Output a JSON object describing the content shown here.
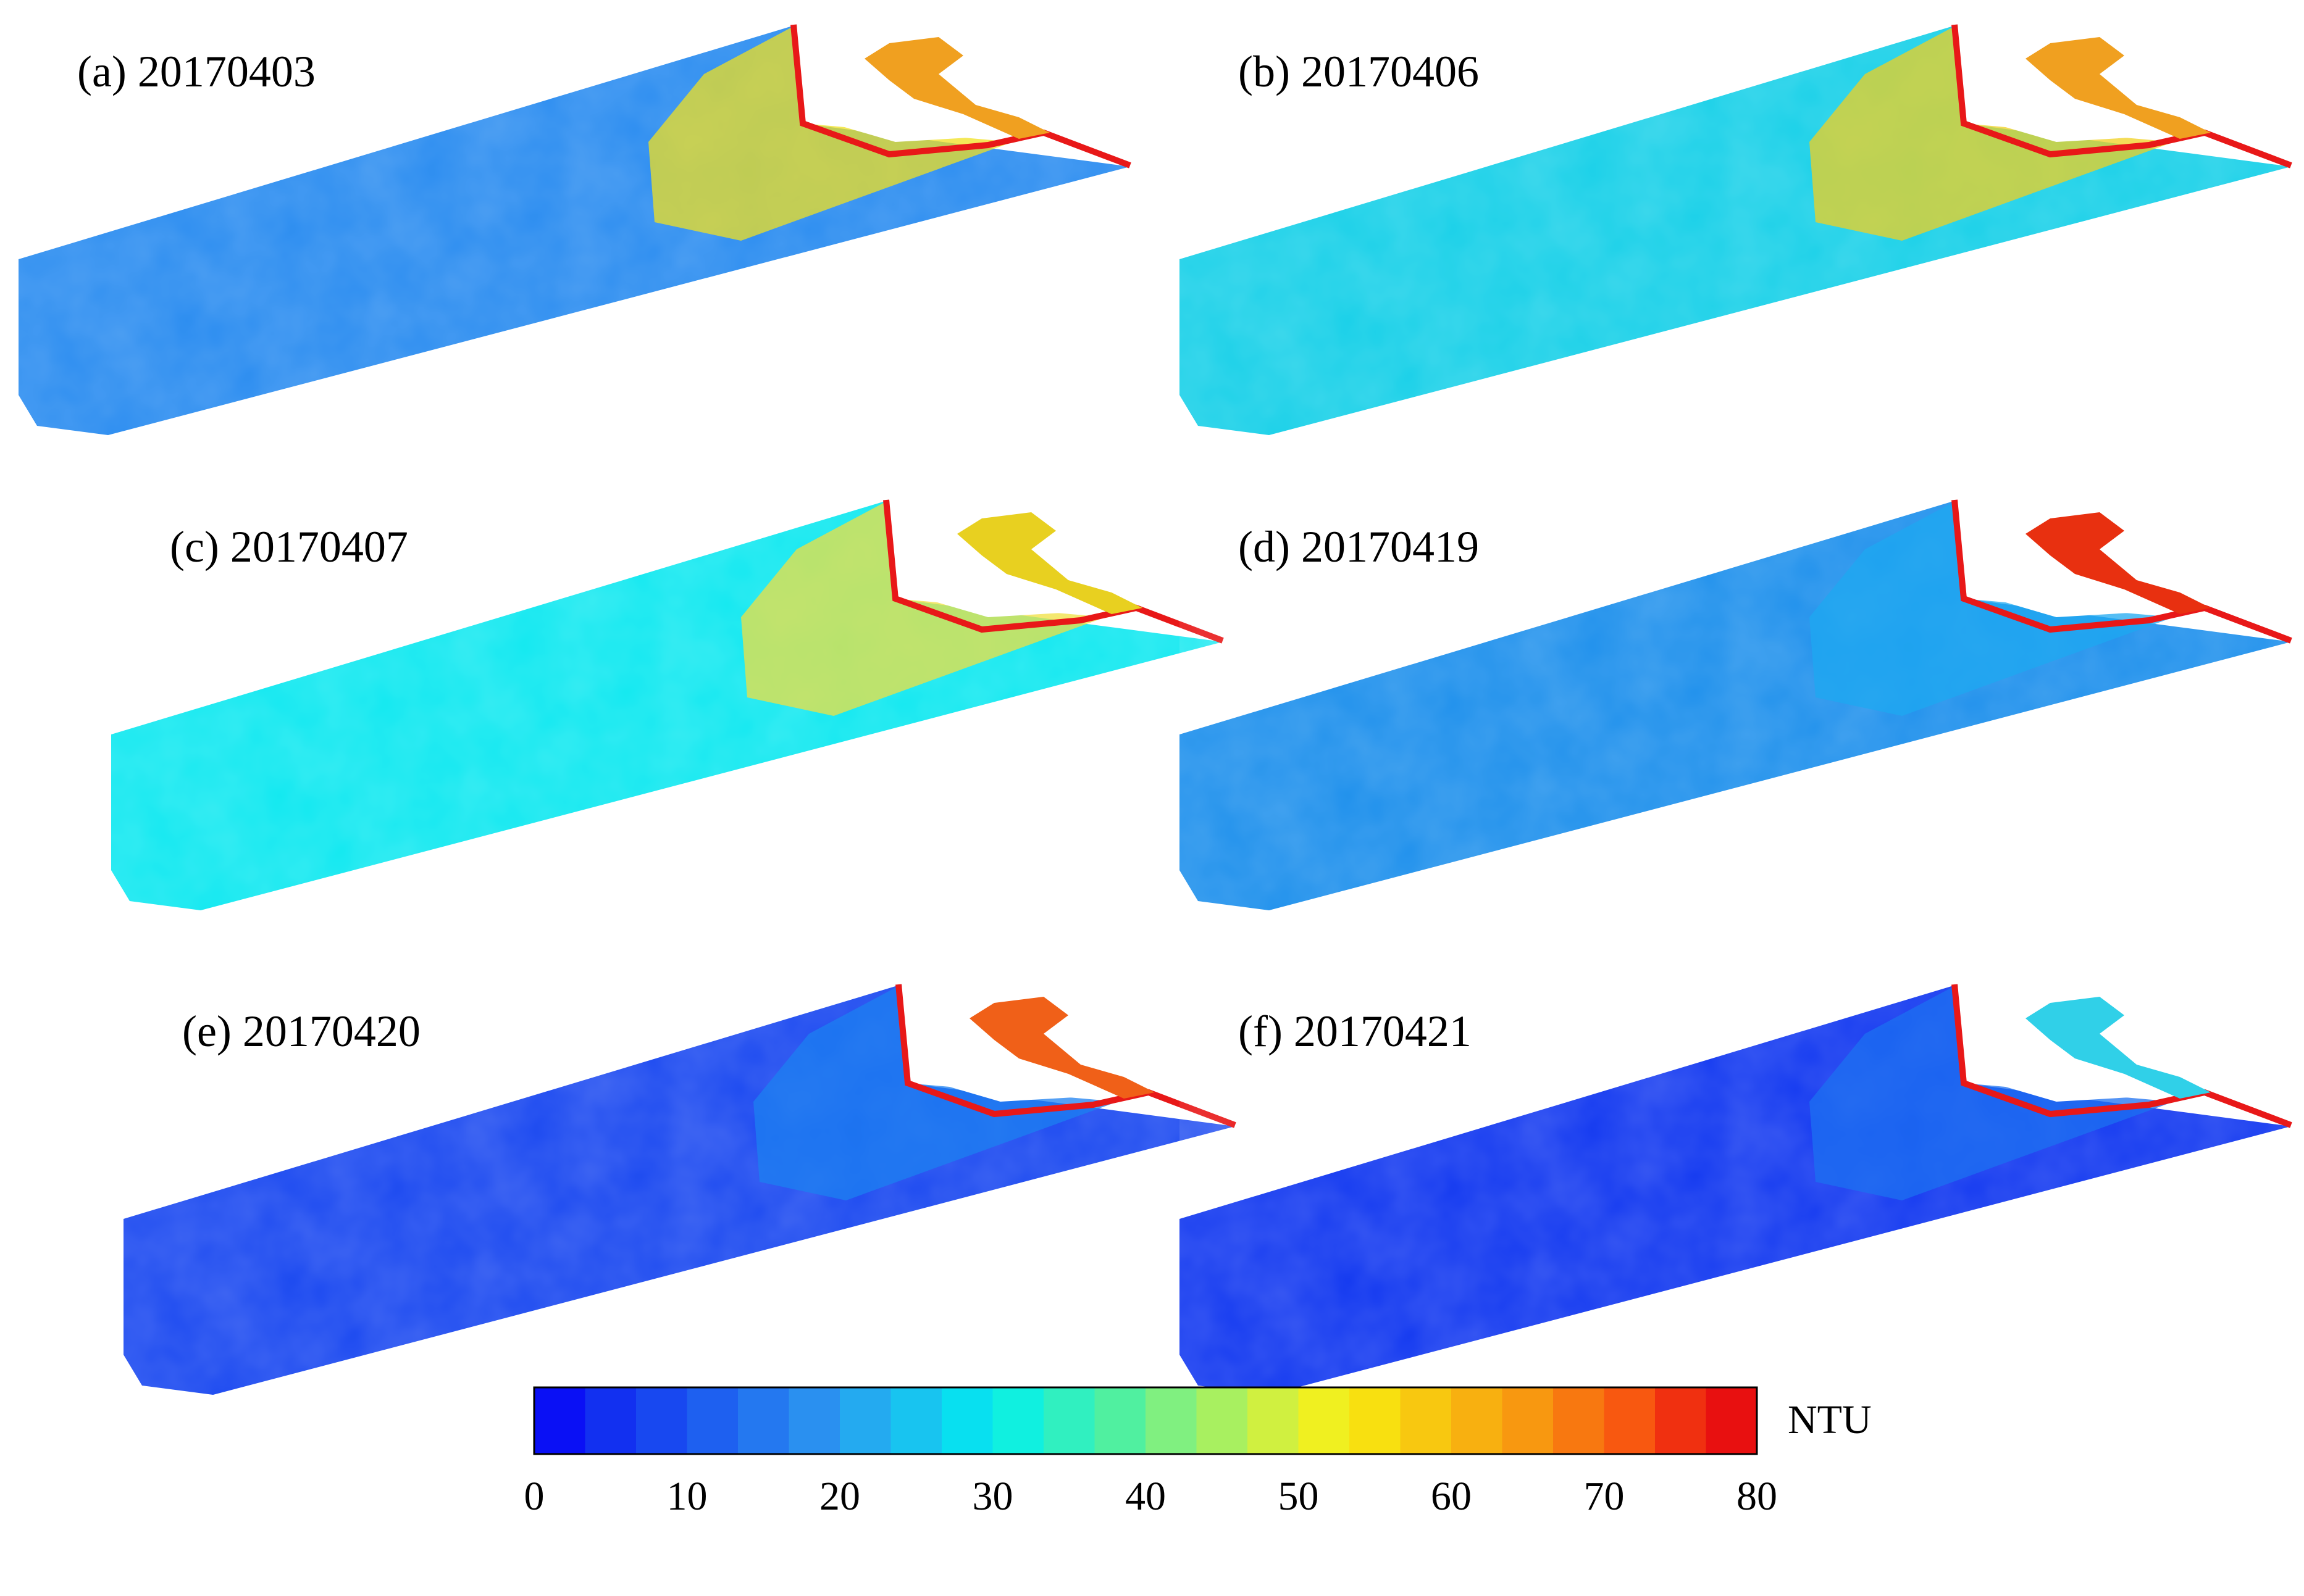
{
  "panels": [
    {
      "label": "(a) 20170403",
      "base_color": "#2a8cf0",
      "plume_color": "#f0e020",
      "edge_color": "#e81818",
      "lagoon_color": "#f0a020"
    },
    {
      "label": "(b) 20170406",
      "base_color": "#18d0e8",
      "plume_color": "#f0d020",
      "edge_color": "#e81818",
      "lagoon_color": "#f0a020"
    },
    {
      "label": "(c) 20170407",
      "base_color": "#10e8f0",
      "plume_color": "#f0e040",
      "edge_color": "#e81818",
      "lagoon_color": "#e8d020"
    },
    {
      "label": "(d) 20170419",
      "base_color": "#1e90ec",
      "plume_color": "#1ea8f0",
      "edge_color": "#e81818",
      "lagoon_color": "#e83010"
    },
    {
      "label": "(e) 20170420",
      "base_color": "#1a48f0",
      "plume_color": "#1c80f0",
      "edge_color": "#e81818",
      "lagoon_color": "#f06018"
    },
    {
      "label": "(f) 20170421",
      "base_color": "#1238f0",
      "plume_color": "#1c70f0",
      "edge_color": "#e81818",
      "lagoon_color": "#30d0e8"
    }
  ],
  "colorbar": {
    "unit": "NTU",
    "min": 0,
    "max": 80,
    "ticks": [
      "0",
      "10",
      "20",
      "30",
      "40",
      "50",
      "60",
      "70",
      "80"
    ],
    "colors": [
      "#0a10f5",
      "#1230f0",
      "#1848f0",
      "#1e60f0",
      "#2478f0",
      "#2a90f0",
      "#24aaf0",
      "#18c4f0",
      "#08e0f0",
      "#10f0e0",
      "#30f0c0",
      "#50f0a0",
      "#80f080",
      "#a8f060",
      "#d0f040",
      "#f0f020",
      "#f8e010",
      "#f8c810",
      "#f8b010",
      "#f89810",
      "#f87810",
      "#f85810",
      "#f03010",
      "#e81010"
    ]
  }
}
